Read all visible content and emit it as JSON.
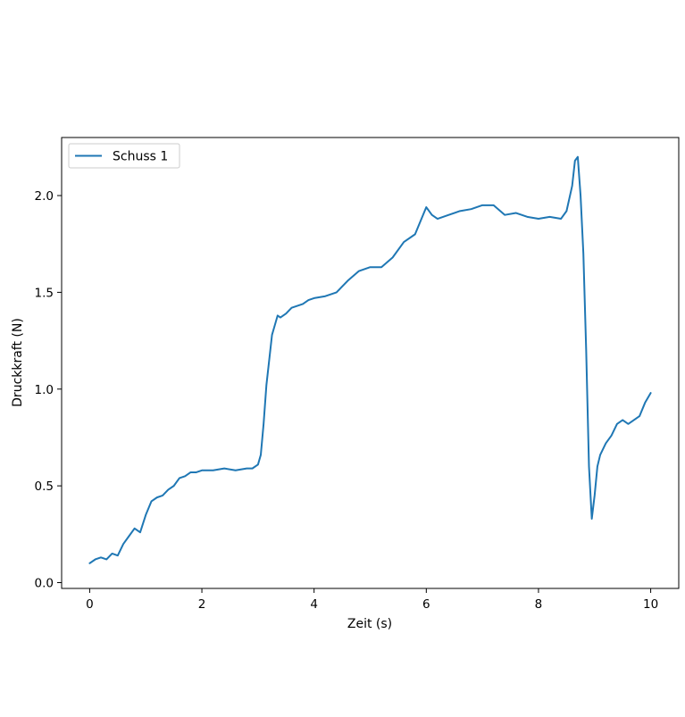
{
  "chart_data": {
    "type": "line",
    "title": "",
    "xlabel": "Zeit (s)",
    "ylabel": "Druckkraft (N)",
    "xlim": [
      -0.5,
      10.5
    ],
    "ylim": [
      -0.03,
      2.3
    ],
    "xticks": [
      0,
      2,
      4,
      6,
      8,
      10
    ],
    "xtick_labels": [
      "0",
      "2",
      "4",
      "6",
      "8",
      "10"
    ],
    "yticks": [
      0.0,
      0.5,
      1.0,
      1.5,
      2.0
    ],
    "ytick_labels": [
      "0.0",
      "0.5",
      "1.0",
      "1.5",
      "2.0"
    ],
    "grid": false,
    "legend_position": "top-left",
    "series": [
      {
        "name": "Schuss 1",
        "color": "#1f77b4",
        "x": [
          0.0,
          0.1,
          0.2,
          0.3,
          0.4,
          0.5,
          0.6,
          0.7,
          0.8,
          0.9,
          1.0,
          1.1,
          1.2,
          1.3,
          1.4,
          1.5,
          1.6,
          1.7,
          1.8,
          1.9,
          2.0,
          2.2,
          2.4,
          2.6,
          2.8,
          2.9,
          3.0,
          3.05,
          3.1,
          3.15,
          3.2,
          3.25,
          3.3,
          3.35,
          3.4,
          3.5,
          3.6,
          3.7,
          3.8,
          3.9,
          4.0,
          4.2,
          4.4,
          4.6,
          4.8,
          5.0,
          5.2,
          5.4,
          5.6,
          5.8,
          6.0,
          6.1,
          6.2,
          6.4,
          6.6,
          6.8,
          7.0,
          7.2,
          7.4,
          7.6,
          7.8,
          8.0,
          8.2,
          8.4,
          8.5,
          8.6,
          8.65,
          8.7,
          8.75,
          8.8,
          8.85,
          8.9,
          8.95,
          9.0,
          9.05,
          9.1,
          9.2,
          9.3,
          9.4,
          9.5,
          9.6,
          9.7,
          9.8,
          9.9,
          10.0
        ],
        "y": [
          0.1,
          0.12,
          0.13,
          0.12,
          0.15,
          0.14,
          0.2,
          0.24,
          0.28,
          0.26,
          0.35,
          0.42,
          0.44,
          0.45,
          0.48,
          0.5,
          0.54,
          0.55,
          0.57,
          0.57,
          0.58,
          0.58,
          0.59,
          0.58,
          0.59,
          0.59,
          0.61,
          0.66,
          0.82,
          1.02,
          1.15,
          1.28,
          1.33,
          1.38,
          1.37,
          1.39,
          1.42,
          1.43,
          1.44,
          1.46,
          1.47,
          1.48,
          1.5,
          1.56,
          1.61,
          1.63,
          1.63,
          1.68,
          1.76,
          1.8,
          1.94,
          1.9,
          1.88,
          1.9,
          1.92,
          1.93,
          1.95,
          1.95,
          1.9,
          1.91,
          1.89,
          1.88,
          1.89,
          1.88,
          1.92,
          2.05,
          2.18,
          2.2,
          2.0,
          1.7,
          1.2,
          0.6,
          0.33,
          0.45,
          0.6,
          0.66,
          0.72,
          0.76,
          0.82,
          0.84,
          0.82,
          0.84,
          0.86,
          0.93,
          0.98
        ]
      }
    ]
  }
}
